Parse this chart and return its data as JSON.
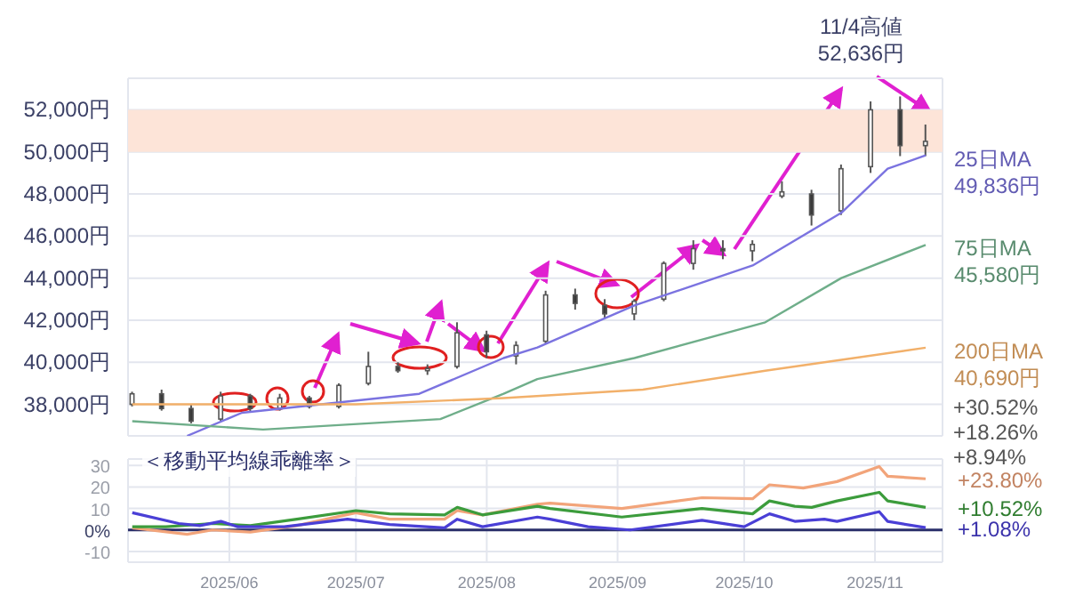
{
  "chart_data": [
    {
      "type": "candlestick",
      "tick_labels": "y",
      "grid": true,
      "marker": "none",
      "x": [
        "2025-05-09",
        "2025-05-16",
        "2025-05-23",
        "2025-05-30",
        "2025-06-06",
        "2025-06-13",
        "2025-06-20",
        "2025-06-27",
        "2025-07-04",
        "2025-07-11",
        "2025-07-18",
        "2025-07-25",
        "2025-08-01",
        "2025-08-08",
        "2025-08-15",
        "2025-08-22",
        "2025-08-29",
        "2025-09-05",
        "2025-09-12",
        "2025-09-19",
        "2025-09-26",
        "2025-10-03",
        "2025-10-10",
        "2025-10-17",
        "2025-10-24",
        "2025-10-31",
        "2025-11-07",
        "2025-11-13"
      ],
      "ohlc": [
        [
          38000,
          38600,
          37900,
          38500
        ],
        [
          38500,
          38700,
          37700,
          37800
        ],
        [
          37800,
          38000,
          37100,
          37200
        ],
        [
          37300,
          38600,
          37200,
          38400
        ],
        [
          38400,
          38500,
          37600,
          37800
        ],
        [
          37800,
          38500,
          37700,
          38300
        ],
        [
          38300,
          38400,
          37800,
          37900
        ],
        [
          37900,
          39000,
          37800,
          38900
        ],
        [
          39000,
          40500,
          38900,
          39800
        ],
        [
          39800,
          40000,
          39500,
          39600
        ],
        [
          39600,
          39900,
          39400,
          39700
        ],
        [
          39800,
          41900,
          39700,
          41400
        ],
        [
          41300,
          41500,
          40200,
          40500
        ],
        [
          40300,
          41000,
          39900,
          40800
        ],
        [
          41000,
          43400,
          40900,
          43200
        ],
        [
          43200,
          43500,
          42500,
          42800
        ],
        [
          42700,
          43000,
          42100,
          42300
        ],
        [
          42300,
          43000,
          42000,
          42900
        ],
        [
          43000,
          44800,
          42900,
          44700
        ],
        [
          44700,
          45800,
          44400,
          45400
        ],
        [
          45400,
          45800,
          44900,
          45300
        ],
        [
          45300,
          45800,
          44800,
          45600
        ],
        [
          47900,
          48600,
          47800,
          48100
        ],
        [
          48000,
          48200,
          46500,
          47000
        ],
        [
          47200,
          49400,
          47000,
          49200
        ],
        [
          49300,
          52400,
          49000,
          52000
        ],
        [
          52000,
          52636,
          49800,
          50300
        ],
        [
          50300,
          51300,
          49800,
          50500
        ]
      ],
      "series": [
        {
          "name": "25日MA",
          "type": "line",
          "color": "#7b73e0",
          "x": [
            "2025-05-22",
            "2025-06-04",
            "2025-07-16",
            "2025-08-05",
            "2025-08-13",
            "2025-09-05",
            "2025-10-03",
            "2025-10-24",
            "2025-11-04",
            "2025-11-13"
          ],
          "values": [
            36500,
            37600,
            38500,
            40200,
            40700,
            42700,
            44600,
            47100,
            49200,
            49836
          ],
          "value_labels": [
            null,
            null,
            null,
            null,
            null,
            null,
            null,
            null,
            null,
            "49,836円"
          ]
        },
        {
          "name": "75日MA",
          "type": "line",
          "color": "#6fae8a",
          "x": [
            "2025-05-09",
            "2025-06-09",
            "2025-07-21",
            "2025-08-05",
            "2025-08-13",
            "2025-09-05",
            "2025-10-06",
            "2025-10-24",
            "2025-11-13"
          ],
          "values": [
            37200,
            36800,
            37300,
            38500,
            39200,
            40200,
            41900,
            44000,
            45580
          ],
          "value_labels": [
            null,
            null,
            null,
            null,
            null,
            null,
            null,
            null,
            "45,580円"
          ]
        },
        {
          "name": "200日MA",
          "type": "line",
          "color": "#f2b06a",
          "x": [
            "2025-05-09",
            "2025-07-01",
            "2025-08-05",
            "2025-09-07",
            "2025-10-06",
            "2025-11-13"
          ],
          "values": [
            38000,
            38000,
            38300,
            38700,
            39600,
            40690
          ],
          "value_labels": [
            null,
            null,
            null,
            null,
            null,
            "40,690円"
          ]
        }
      ],
      "xlim": [
        "2025-05-08",
        "2025-11-17"
      ],
      "xticks": [
        {
          "value": "2025-06-01",
          "label": null
        },
        {
          "value": "2025-07-01",
          "label": null
        },
        {
          "value": "2025-08-01",
          "label": null
        },
        {
          "value": "2025-09-01",
          "label": null
        },
        {
          "value": "2025-10-01",
          "label": null
        },
        {
          "value": "2025-11-01",
          "label": null
        }
      ],
      "ylim": [
        36500,
        53500
      ],
      "yticks": [
        {
          "value": 38000,
          "label": "38,000円"
        },
        {
          "value": 40000,
          "label": "40,000円"
        },
        {
          "value": 42000,
          "label": "42,000円"
        },
        {
          "value": 44000,
          "label": "44,000円"
        },
        {
          "value": 46000,
          "label": "46,000円"
        },
        {
          "value": 48000,
          "label": "48,000円"
        },
        {
          "value": 50000,
          "label": "50,000円"
        },
        {
          "value": 52000,
          "label": "52,000円"
        }
      ],
      "bands": [
        {
          "axis": "y",
          "from": 50000,
          "to": 52000,
          "color": "#fde4d8"
        }
      ],
      "annotations": [
        {
          "text": "11/4高値\n52,636円",
          "x": "2025-11-07",
          "y": 52636
        },
        "+30.52%",
        "+18.26%",
        "+8.94%"
      ]
    },
    {
      "type": "line",
      "title": "＜移動平均線乖離率＞",
      "grid": true,
      "marker": "none",
      "series": [
        {
          "color": "#f2a47a",
          "x": [
            "2025-05-09",
            "2025-05-22",
            "2025-05-28",
            "2025-06-06",
            "2025-06-17",
            "2025-07-01",
            "2025-07-09",
            "2025-07-22",
            "2025-07-25",
            "2025-07-31",
            "2025-08-13",
            "2025-08-16",
            "2025-09-02",
            "2025-09-21",
            "2025-10-03",
            "2025-10-07",
            "2025-10-15",
            "2025-10-23",
            "2025-11-02",
            "2025-11-04",
            "2025-11-13"
          ],
          "values": [
            1,
            -2,
            0,
            -1,
            2,
            8,
            5,
            5,
            9,
            7,
            12,
            12.5,
            10,
            15,
            14.5,
            21,
            19.5,
            22.5,
            29.5,
            25,
            23.8
          ],
          "value_labels": [
            null,
            null,
            null,
            null,
            null,
            null,
            null,
            null,
            null,
            null,
            null,
            null,
            null,
            null,
            null,
            null,
            null,
            null,
            null,
            null,
            "+23.80%"
          ]
        },
        {
          "color": "#3c9c3c",
          "x": [
            "2025-05-09",
            "2025-05-17",
            "2025-05-28",
            "2025-06-06",
            "2025-06-17",
            "2025-07-01",
            "2025-07-09",
            "2025-07-22",
            "2025-07-25",
            "2025-07-31",
            "2025-08-13",
            "2025-08-16",
            "2025-09-02",
            "2025-09-21",
            "2025-10-03",
            "2025-10-07",
            "2025-10-13",
            "2025-10-17",
            "2025-10-23",
            "2025-11-02",
            "2025-11-04",
            "2025-11-13"
          ],
          "values": [
            1.5,
            1.5,
            3,
            2,
            5,
            9,
            7.5,
            7,
            10.5,
            7,
            11,
            10,
            6,
            10,
            7.5,
            13.5,
            11,
            10.5,
            13.5,
            17.5,
            13.5,
            10.52
          ],
          "value_labels": [
            null,
            null,
            null,
            null,
            null,
            null,
            null,
            null,
            null,
            null,
            null,
            null,
            null,
            null,
            null,
            null,
            null,
            null,
            null,
            null,
            null,
            "+10.52%"
          ]
        },
        {
          "color": "#4a3fd6",
          "x": [
            "2025-05-09",
            "2025-05-20",
            "2025-05-25",
            "2025-05-30",
            "2025-06-03",
            "2025-06-14",
            "2025-06-29",
            "2025-07-09",
            "2025-07-22",
            "2025-07-25",
            "2025-07-31",
            "2025-08-13",
            "2025-08-16",
            "2025-08-25",
            "2025-09-04",
            "2025-09-21",
            "2025-10-01",
            "2025-10-07",
            "2025-10-13",
            "2025-10-20",
            "2025-10-23",
            "2025-11-02",
            "2025-11-04",
            "2025-11-13"
          ],
          "values": [
            8,
            3,
            2,
            4,
            1.5,
            1.5,
            5,
            2.5,
            1,
            5,
            1.5,
            6,
            5,
            1.5,
            0,
            4.5,
            1.5,
            7.5,
            4,
            5,
            4,
            8.5,
            4,
            1.08
          ],
          "value_labels": [
            null,
            null,
            null,
            null,
            null,
            null,
            null,
            null,
            null,
            null,
            null,
            null,
            null,
            null,
            null,
            null,
            null,
            null,
            null,
            null,
            null,
            null,
            null,
            "+1.08%"
          ]
        }
      ],
      "xlim": [
        "2025-05-08",
        "2025-11-17"
      ],
      "xticks": [
        {
          "value": "2025-06-01",
          "label": "2025/06"
        },
        {
          "value": "2025-07-01",
          "label": "2025/07"
        },
        {
          "value": "2025-08-01",
          "label": "2025/08"
        },
        {
          "value": "2025-09-01",
          "label": "2025/09"
        },
        {
          "value": "2025-10-01",
          "label": "2025/10"
        },
        {
          "value": "2025-11-01",
          "label": "2025/11"
        }
      ],
      "ylim": [
        -15,
        33
      ],
      "yticks": [
        -10,
        {
          "value": 0,
          "label": "0%"
        },
        10,
        20,
        30
      ],
      "ref_lines": [
        {
          "axis": "y",
          "value": 0,
          "color": "#2a2f6a"
        }
      ]
    }
  ]
}
